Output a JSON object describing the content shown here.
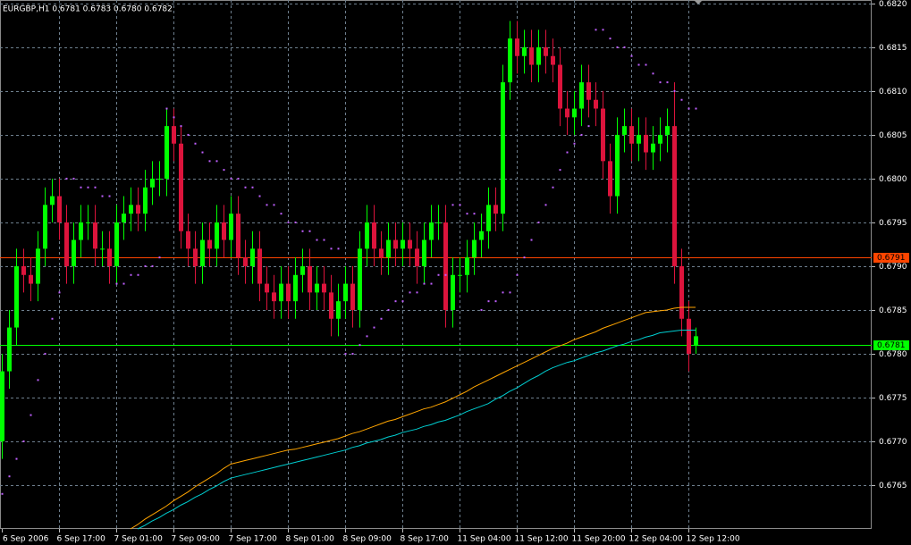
{
  "chart_data": {
    "type": "candlestick",
    "title": "EURGBP,H1  0.6781 0.6783 0.6780 0.6782",
    "categories": [
      "6 Sep 2006",
      null,
      null,
      null,
      null,
      null,
      null,
      null,
      "6 Sep 17:00",
      null,
      null,
      null,
      null,
      null,
      null,
      null,
      "7 Sep 01:00",
      null,
      null,
      null,
      null,
      null,
      null,
      null,
      "7 Sep 09:00",
      null,
      null,
      null,
      null,
      null,
      null,
      null,
      "7 Sep 17:00",
      null,
      null,
      null,
      null,
      null,
      null,
      null,
      "8 Sep 01:00",
      null,
      null,
      null,
      null,
      null,
      null,
      null,
      "8 Sep 09:00",
      null,
      null,
      null,
      null,
      null,
      null,
      null,
      "8 Sep 17:00",
      null,
      null,
      null,
      null,
      null,
      null,
      null,
      "11 Sep 04:00",
      null,
      null,
      null,
      null,
      null,
      null,
      null,
      "11 Sep 12:00",
      null,
      null,
      null,
      null,
      null,
      null,
      null,
      "11 Sep 20:00",
      null,
      null,
      null,
      null,
      null,
      null,
      null,
      "12 Sep 04:00",
      null,
      null,
      null,
      null,
      null,
      null,
      null,
      "12 Sep 12:00",
      null
    ],
    "open": [
      0.677,
      0.6778,
      0.6783,
      0.679,
      0.6789,
      0.6788,
      0.6792,
      0.6797,
      0.6798,
      0.6795,
      0.679,
      0.6793,
      0.6795,
      0.6795,
      0.6792,
      0.6792,
      0.679,
      0.6795,
      0.6796,
      0.6797,
      0.6796,
      0.6799,
      0.68,
      0.68,
      0.6806,
      0.6804,
      0.6794,
      0.6792,
      0.679,
      0.6793,
      0.6792,
      0.6795,
      0.6793,
      0.6796,
      0.6791,
      0.679,
      0.6792,
      0.6788,
      0.6787,
      0.6786,
      0.6788,
      0.6786,
      0.6789,
      0.679,
      0.6787,
      0.6788,
      0.6787,
      0.6784,
      0.6786,
      0.6788,
      0.6785,
      0.6792,
      0.6795,
      0.6792,
      0.6791,
      0.6793,
      0.6792,
      0.6793,
      0.6792,
      0.679,
      0.6793,
      0.6795,
      0.6795,
      0.6785,
      0.6789,
      0.6789,
      0.6791,
      0.6793,
      0.6794,
      0.6797,
      0.6796,
      0.6811,
      0.6816,
      0.6814,
      0.6815,
      0.6813,
      0.6815,
      0.6814,
      0.6813,
      0.6808,
      0.6807,
      0.6808,
      0.6811,
      0.6809,
      0.6808,
      0.6802,
      0.6798,
      0.6805,
      0.6806,
      0.6804,
      0.6805,
      0.6803,
      0.6804,
      0.6805,
      0.6806,
      0.679,
      0.6784,
      0.6781
    ],
    "high": [
      0.678,
      0.6785,
      0.6792,
      0.6792,
      0.6791,
      0.6794,
      0.6799,
      0.68,
      0.68,
      0.6797,
      0.6795,
      0.6797,
      0.6797,
      0.6797,
      0.6794,
      0.6794,
      0.6797,
      0.6798,
      0.6799,
      0.6799,
      0.6801,
      0.6802,
      0.6802,
      0.6808,
      0.6808,
      0.6806,
      0.6796,
      0.6794,
      0.6795,
      0.6795,
      0.6797,
      0.6797,
      0.6798,
      0.6798,
      0.6793,
      0.6794,
      0.6794,
      0.679,
      0.6789,
      0.679,
      0.679,
      0.6791,
      0.6792,
      0.6792,
      0.679,
      0.679,
      0.6789,
      0.6788,
      0.679,
      0.679,
      0.6794,
      0.6797,
      0.6797,
      0.6794,
      0.6795,
      0.6795,
      0.6795,
      0.6795,
      0.6794,
      0.6795,
      0.6797,
      0.6797,
      0.6797,
      0.6791,
      0.6791,
      0.6793,
      0.6795,
      0.6796,
      0.6799,
      0.6799,
      0.6813,
      0.6818,
      0.6818,
      0.6817,
      0.6817,
      0.6817,
      0.6817,
      0.6816,
      0.6815,
      0.681,
      0.681,
      0.6813,
      0.6813,
      0.6811,
      0.681,
      0.6804,
      0.6807,
      0.6808,
      0.6808,
      0.6807,
      0.6807,
      0.6806,
      0.6807,
      0.6808,
      0.6811,
      0.6792,
      0.6786,
      0.6783
    ],
    "low": [
      0.6768,
      0.6776,
      0.6781,
      0.6787,
      0.6786,
      0.6786,
      0.679,
      0.6795,
      0.6793,
      0.6788,
      0.6788,
      0.6791,
      0.6793,
      0.679,
      0.679,
      0.6788,
      0.6788,
      0.6793,
      0.6794,
      0.6794,
      0.6794,
      0.6797,
      0.6798,
      0.6798,
      0.6802,
      0.6792,
      0.679,
      0.6788,
      0.6788,
      0.679,
      0.679,
      0.6791,
      0.6791,
      0.6789,
      0.6788,
      0.6788,
      0.6786,
      0.6785,
      0.6784,
      0.6784,
      0.6784,
      0.6784,
      0.6787,
      0.6785,
      0.6785,
      0.6785,
      0.6782,
      0.6782,
      0.6784,
      0.6783,
      0.6783,
      0.679,
      0.679,
      0.6789,
      0.6789,
      0.679,
      0.679,
      0.679,
      0.6788,
      0.6788,
      0.6791,
      0.6793,
      0.6783,
      0.6783,
      0.6787,
      0.6787,
      0.6789,
      0.6791,
      0.6792,
      0.6794,
      0.6794,
      0.6809,
      0.6812,
      0.6812,
      0.6811,
      0.6811,
      0.6812,
      0.6811,
      0.6806,
      0.6805,
      0.6805,
      0.6806,
      0.6807,
      0.6806,
      0.68,
      0.6796,
      0.6796,
      0.6803,
      0.6802,
      0.6802,
      0.6801,
      0.6801,
      0.6802,
      0.6803,
      0.6788,
      0.6782,
      0.6778,
      0.678
    ],
    "close": [
      0.6778,
      0.6783,
      0.679,
      0.6789,
      0.6788,
      0.6792,
      0.6797,
      0.6798,
      0.6795,
      0.679,
      0.6793,
      0.6795,
      0.6795,
      0.6792,
      0.6792,
      0.679,
      0.6795,
      0.6796,
      0.6797,
      0.6796,
      0.6799,
      0.68,
      0.68,
      0.6806,
      0.6804,
      0.6794,
      0.6792,
      0.679,
      0.6793,
      0.6792,
      0.6795,
      0.6793,
      0.6796,
      0.6791,
      0.679,
      0.6792,
      0.6788,
      0.6787,
      0.6786,
      0.6788,
      0.6786,
      0.6789,
      0.679,
      0.6787,
      0.6788,
      0.6787,
      0.6784,
      0.6786,
      0.6788,
      0.6785,
      0.6792,
      0.6795,
      0.6792,
      0.6791,
      0.6793,
      0.6792,
      0.6793,
      0.6792,
      0.679,
      0.6793,
      0.6795,
      0.6795,
      0.6785,
      0.6789,
      0.6789,
      0.6791,
      0.6793,
      0.6794,
      0.6797,
      0.6796,
      0.6811,
      0.6816,
      0.6814,
      0.6815,
      0.6813,
      0.6815,
      0.6814,
      0.6813,
      0.6808,
      0.6807,
      0.6808,
      0.6811,
      0.6809,
      0.6808,
      0.6802,
      0.6798,
      0.6805,
      0.6806,
      0.6804,
      0.6805,
      0.6803,
      0.6804,
      0.6805,
      0.6806,
      0.679,
      0.6784,
      0.678,
      0.6782
    ],
    "bull_color": "#00ff00",
    "bear_color": "#dc143c",
    "series": [
      {
        "style": "line",
        "color": "#ffa500",
        "values": [
          null,
          null,
          null,
          null,
          null,
          null,
          null,
          null,
          null,
          null,
          null,
          null,
          null,
          null,
          null,
          null,
          null,
          null,
          0.676,
          0.67605,
          0.67611,
          0.67616,
          0.67621,
          0.67626,
          0.67632,
          0.67637,
          0.67642,
          0.67648,
          0.67653,
          0.67658,
          0.67663,
          0.67669,
          0.67674,
          0.67676,
          0.67678,
          0.6768,
          0.67682,
          0.67684,
          0.67686,
          0.67688,
          0.6769,
          0.67691,
          0.67693,
          0.67695,
          0.67697,
          0.67699,
          0.67701,
          0.67703,
          0.67706,
          0.67709,
          0.67711,
          0.67714,
          0.67717,
          0.6772,
          0.67723,
          0.67725,
          0.67728,
          0.67731,
          0.67734,
          0.67737,
          0.67739,
          0.67742,
          0.67745,
          0.67749,
          0.67753,
          0.67757,
          0.67762,
          0.67766,
          0.6777,
          0.67774,
          0.67778,
          0.67782,
          0.67786,
          0.6779,
          0.67794,
          0.67798,
          0.67802,
          0.67806,
          0.67809,
          0.67812,
          0.67816,
          0.67819,
          0.67822,
          0.67825,
          0.67829,
          0.67832,
          0.67835,
          0.67838,
          0.67841,
          0.67844,
          0.67847,
          0.67848,
          0.67849,
          0.6785,
          0.67852,
          0.67853,
          0.67853,
          0.67853
        ]
      },
      {
        "style": "line",
        "color": "#00ced1",
        "values": [
          null,
          null,
          null,
          null,
          null,
          null,
          null,
          null,
          null,
          null,
          null,
          null,
          null,
          null,
          null,
          null,
          null,
          null,
          null,
          0.676,
          0.67604,
          0.67609,
          0.67613,
          0.67618,
          0.67622,
          0.67627,
          0.67631,
          0.67636,
          0.6764,
          0.67645,
          0.67649,
          0.67654,
          0.67658,
          0.6766,
          0.67662,
          0.67664,
          0.67666,
          0.67668,
          0.6767,
          0.67672,
          0.67674,
          0.67676,
          0.67678,
          0.6768,
          0.67682,
          0.67684,
          0.67686,
          0.67688,
          0.6769,
          0.67693,
          0.67695,
          0.67698,
          0.677,
          0.67702,
          0.67705,
          0.67707,
          0.6771,
          0.67712,
          0.67714,
          0.67717,
          0.67719,
          0.67722,
          0.67724,
          0.67727,
          0.6773,
          0.67734,
          0.67737,
          0.6774,
          0.67743,
          0.67748,
          0.67752,
          0.67757,
          0.67761,
          0.67766,
          0.67771,
          0.67775,
          0.6778,
          0.67784,
          0.67787,
          0.6779,
          0.67792,
          0.67795,
          0.67798,
          0.67801,
          0.67803,
          0.67806,
          0.67809,
          0.67811,
          0.67814,
          0.67816,
          0.67819,
          0.67821,
          0.67824,
          0.67825,
          0.67826,
          0.67827,
          0.67827,
          0.67827
        ]
      },
      {
        "style": "dots",
        "color": "#c060ff",
        "values": [
          0.6764,
          0.6766,
          0.6768,
          0.677,
          0.6773,
          0.6777,
          0.678,
          0.6784,
          0.6787,
          0.68,
          0.68,
          0.6799,
          0.6799,
          0.6799,
          0.6798,
          0.6798,
          0.6788,
          0.6788,
          0.6789,
          0.6789,
          0.679,
          0.679,
          0.6791,
          0.6808,
          0.6807,
          0.6806,
          0.6805,
          0.6804,
          0.6803,
          0.6802,
          0.6802,
          0.6801,
          0.68,
          0.68,
          0.6799,
          0.6799,
          0.6798,
          0.6797,
          0.6797,
          0.6796,
          0.6795,
          0.6795,
          0.6794,
          0.6794,
          0.6793,
          0.6793,
          0.6792,
          0.6792,
          0.678,
          0.678,
          0.6781,
          0.6782,
          0.6783,
          0.6784,
          0.6785,
          0.6786,
          0.6786,
          0.6787,
          0.6787,
          0.6788,
          0.6788,
          0.6789,
          0.6789,
          0.6797,
          0.6797,
          0.6796,
          0.6796,
          0.6785,
          0.6786,
          0.6786,
          0.6787,
          0.6787,
          0.6789,
          0.6791,
          0.6793,
          0.6795,
          0.6797,
          0.6799,
          0.6801,
          0.6803,
          0.6804,
          0.6805,
          0.6806,
          0.6817,
          0.6817,
          0.6816,
          0.6815,
          0.6815,
          0.6814,
          0.6813,
          0.6813,
          0.6812,
          0.6811,
          0.6811,
          0.681,
          0.6809,
          0.6808,
          0.6808
        ]
      }
    ],
    "price_lines": [
      {
        "value": 0.6791,
        "color": "#ff4500"
      },
      {
        "value": 0.6781,
        "color": "#00ff00"
      }
    ],
    "ylim": [
      0.676,
      0.68204
    ],
    "yticks": [
      0.6765,
      {
        "value": 0.677,
        "label": "0.6770"
      },
      0.6775,
      {
        "value": 0.678,
        "label": "0.6780"
      },
      0.6785,
      {
        "value": 0.679,
        "label": "0.6790"
      },
      0.6795,
      {
        "value": 0.68,
        "label": "0.6800"
      },
      0.6805,
      {
        "value": 0.681,
        "label": "0.6810"
      },
      0.6815,
      {
        "value": 0.682,
        "label": "0.6820"
      }
    ],
    "grid": true
  }
}
